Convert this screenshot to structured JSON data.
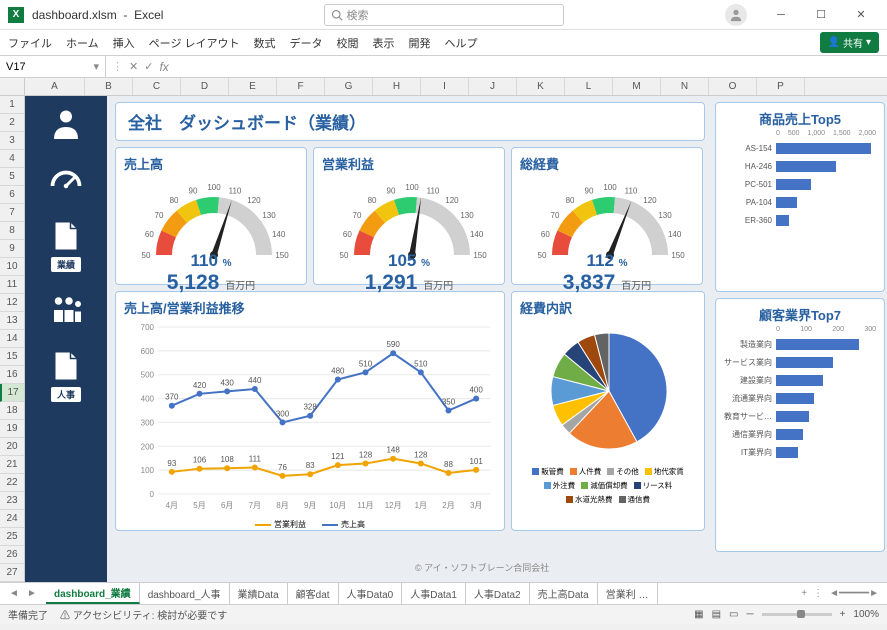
{
  "app": {
    "filename": "dashboard.xlsm",
    "appname": "Excel",
    "search_placeholder": "検索",
    "share_label": "共有"
  },
  "ribbon": [
    "ファイル",
    "ホーム",
    "挿入",
    "ページ レイアウト",
    "数式",
    "データ",
    "校閲",
    "表示",
    "開発",
    "ヘルプ"
  ],
  "namebox": "V17",
  "columns": [
    "A",
    "B",
    "C",
    "D",
    "E",
    "F",
    "G",
    "H",
    "I",
    "J",
    "K",
    "L",
    "M",
    "N",
    "O",
    "P"
  ],
  "row_count": 27,
  "selected_row": 17,
  "sidebar": [
    {
      "label": "",
      "icon": "person"
    },
    {
      "label": "",
      "icon": "gauge"
    },
    {
      "label": "業績",
      "icon": "doc"
    },
    {
      "label": "",
      "icon": "people"
    },
    {
      "label": "人事",
      "icon": "doc"
    }
  ],
  "main_title": "全社　ダッシュボード（業績）",
  "gauges": [
    {
      "title": "売上高",
      "pct": 110,
      "value": "5,128",
      "unit": "百万円",
      "ticks": [
        50,
        60,
        70,
        80,
        90,
        100,
        110,
        120,
        130,
        140,
        150
      ]
    },
    {
      "title": "営業利益",
      "pct": 105,
      "value": "1,291",
      "unit": "百万円",
      "ticks": [
        50,
        60,
        70,
        80,
        90,
        100,
        110,
        120,
        130,
        140,
        150
      ]
    },
    {
      "title": "総経費",
      "pct": 112,
      "value": "3,837",
      "unit": "百万円",
      "ticks": [
        50,
        60,
        70,
        80,
        90,
        100,
        110,
        120,
        130,
        140,
        150
      ]
    }
  ],
  "gauge_colors": {
    "red": "#e74c3c",
    "orange": "#f39c12",
    "yellow": "#f1c40f",
    "green": "#2ecc71",
    "gray": "#d0d0d0",
    "needle": "#222222"
  },
  "trend": {
    "title": "売上高/営業利益推移",
    "months": [
      "4月",
      "5月",
      "6月",
      "7月",
      "8月",
      "9月",
      "10月",
      "11月",
      "12月",
      "1月",
      "2月",
      "3月"
    ],
    "sales": [
      370,
      420,
      430,
      440,
      300,
      328,
      480,
      510,
      590,
      510,
      350,
      400
    ],
    "profit": [
      93,
      106,
      108,
      111,
      76,
      83,
      121,
      128,
      148,
      128,
      88,
      101
    ],
    "ylim": [
      0,
      700
    ],
    "ytick": 100,
    "sales_color": "#4472c4",
    "profit_color": "#f1a300",
    "legend": [
      "営業利益",
      "売上高"
    ]
  },
  "pie": {
    "title": "経費内訳",
    "slices": [
      {
        "label": "販管費",
        "value": 42,
        "color": "#4472c4"
      },
      {
        "label": "人件費",
        "value": 20,
        "color": "#ed7d31"
      },
      {
        "label": "その他",
        "value": 3,
        "color": "#a5a5a5"
      },
      {
        "label": "地代家賃",
        "value": 6,
        "color": "#ffc000"
      },
      {
        "label": "外注費",
        "value": 8,
        "color": "#5b9bd5"
      },
      {
        "label": "減価償却費",
        "value": 7,
        "color": "#70ad47"
      },
      {
        "label": "リース料",
        "value": 5,
        "color": "#264478"
      },
      {
        "label": "水道光熱費",
        "value": 5,
        "color": "#9e480e"
      },
      {
        "label": "通信費",
        "value": 4,
        "color": "#636363"
      }
    ]
  },
  "top5": {
    "title": "商品売上Top5",
    "axis": [
      0,
      500,
      "1,000",
      "1,500",
      "2,000"
    ],
    "max": 2000,
    "items": [
      {
        "label": "AS-154",
        "value": 1900
      },
      {
        "label": "HA-246",
        "value": 1200
      },
      {
        "label": "PC-501",
        "value": 700
      },
      {
        "label": "PA-104",
        "value": 420
      },
      {
        "label": "ER-360",
        "value": 260
      }
    ],
    "color": "#4472c4"
  },
  "top7": {
    "title": "顧客業界Top7",
    "axis": [
      0,
      100,
      200,
      300
    ],
    "max": 300,
    "items": [
      {
        "label": "製造業向",
        "value": 250
      },
      {
        "label": "サービス業向",
        "value": 170
      },
      {
        "label": "建設業向",
        "value": 140
      },
      {
        "label": "流通業界向",
        "value": 115
      },
      {
        "label": "教育サービ…",
        "value": 100
      },
      {
        "label": "通信業界向",
        "value": 80
      },
      {
        "label": "IT業界向",
        "value": 65
      }
    ],
    "color": "#4472c4"
  },
  "sheets": [
    "dashboard_業績",
    "dashboard_人事",
    "業績Data",
    "顧客dat",
    "人事Data0",
    "人事Data1",
    "人事Data2",
    "売上高Data",
    "営業利 …"
  ],
  "active_sheet": 0,
  "status": {
    "ready": "準備完了",
    "acc": "アクセシビリティ: 検討が必要です",
    "zoom": "100%"
  },
  "copyright": "© アイ・ソフトブレーン合同会社"
}
